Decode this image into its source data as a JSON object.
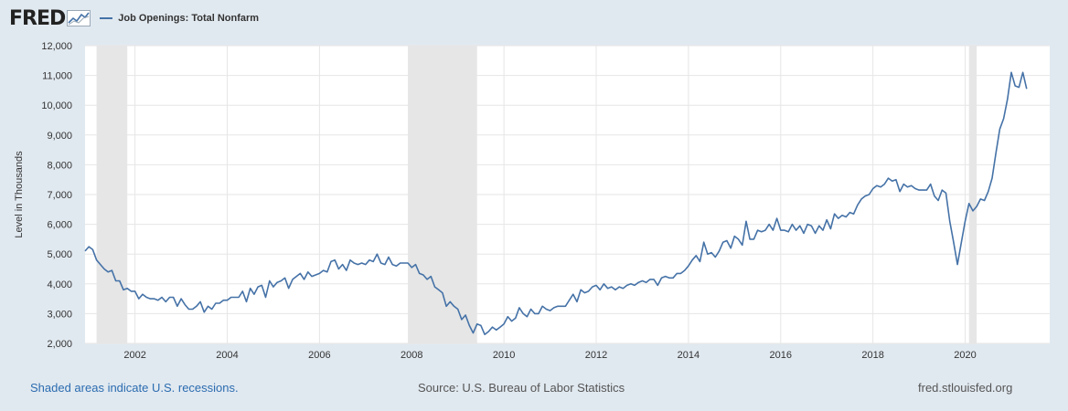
{
  "header": {
    "logo_text": "FRED",
    "legend_label": "Job Openings: Total Nonfarm"
  },
  "footer": {
    "recession_note": "Shaded areas indicate U.S. recessions.",
    "source": "Source: U.S. Bureau of Labor Statistics",
    "url": "fred.stlouisfed.org"
  },
  "colors": {
    "line": "#4572a7",
    "background": "#e1e9f0",
    "plot_background": "#ffffff",
    "recession_shading": "#e6e6e6",
    "link": "#2b6cb0"
  },
  "chart_data": {
    "type": "line",
    "title": "",
    "xlabel": "",
    "ylabel": "Level in Thousands",
    "xlim": [
      2000.917,
      2021.833
    ],
    "ylim": [
      2000,
      12000
    ],
    "y_ticks": [
      2000,
      3000,
      4000,
      5000,
      6000,
      7000,
      8000,
      9000,
      10000,
      11000,
      12000
    ],
    "y_tick_labels": [
      "2,000",
      "3,000",
      "4,000",
      "5,000",
      "6,000",
      "7,000",
      "8,000",
      "9,000",
      "10,000",
      "11,000",
      "12,000"
    ],
    "x_ticks": [
      2002,
      2004,
      2006,
      2008,
      2010,
      2012,
      2014,
      2016,
      2018,
      2020
    ],
    "x_tick_labels": [
      "2002",
      "2004",
      "2006",
      "2008",
      "2010",
      "2012",
      "2014",
      "2016",
      "2018",
      "2020"
    ],
    "grid": true,
    "legend_position": "top-left",
    "recessions": [
      [
        2001.167,
        2001.833
      ],
      [
        2007.917,
        2009.417
      ],
      [
        2020.083,
        2020.25
      ]
    ],
    "series": [
      {
        "name": "Job Openings: Total Nonfarm",
        "points": [
          [
            2000.917,
            5100
          ],
          [
            2001.0,
            5250
          ],
          [
            2001.083,
            5150
          ],
          [
            2001.167,
            4800
          ],
          [
            2001.25,
            4650
          ],
          [
            2001.333,
            4500
          ],
          [
            2001.417,
            4400
          ],
          [
            2001.5,
            4450
          ],
          [
            2001.583,
            4100
          ],
          [
            2001.667,
            4100
          ],
          [
            2001.75,
            3800
          ],
          [
            2001.833,
            3850
          ],
          [
            2001.917,
            3750
          ],
          [
            2002.0,
            3750
          ],
          [
            2002.083,
            3500
          ],
          [
            2002.167,
            3650
          ],
          [
            2002.25,
            3550
          ],
          [
            2002.333,
            3500
          ],
          [
            2002.417,
            3500
          ],
          [
            2002.5,
            3450
          ],
          [
            2002.583,
            3550
          ],
          [
            2002.667,
            3400
          ],
          [
            2002.75,
            3550
          ],
          [
            2002.833,
            3550
          ],
          [
            2002.917,
            3250
          ],
          [
            2003.0,
            3500
          ],
          [
            2003.083,
            3300
          ],
          [
            2003.167,
            3150
          ],
          [
            2003.25,
            3150
          ],
          [
            2003.333,
            3250
          ],
          [
            2003.417,
            3400
          ],
          [
            2003.5,
            3050
          ],
          [
            2003.583,
            3250
          ],
          [
            2003.667,
            3150
          ],
          [
            2003.75,
            3350
          ],
          [
            2003.833,
            3350
          ],
          [
            2003.917,
            3450
          ],
          [
            2004.0,
            3450
          ],
          [
            2004.083,
            3550
          ],
          [
            2004.167,
            3550
          ],
          [
            2004.25,
            3550
          ],
          [
            2004.333,
            3750
          ],
          [
            2004.417,
            3400
          ],
          [
            2004.5,
            3850
          ],
          [
            2004.583,
            3650
          ],
          [
            2004.667,
            3900
          ],
          [
            2004.75,
            3950
          ],
          [
            2004.833,
            3550
          ],
          [
            2004.917,
            4100
          ],
          [
            2005.0,
            3900
          ],
          [
            2005.083,
            4050
          ],
          [
            2005.167,
            4100
          ],
          [
            2005.25,
            4200
          ],
          [
            2005.333,
            3850
          ],
          [
            2005.417,
            4150
          ],
          [
            2005.5,
            4250
          ],
          [
            2005.583,
            4350
          ],
          [
            2005.667,
            4150
          ],
          [
            2005.75,
            4400
          ],
          [
            2005.833,
            4250
          ],
          [
            2005.917,
            4300
          ],
          [
            2006.0,
            4350
          ],
          [
            2006.083,
            4450
          ],
          [
            2006.167,
            4400
          ],
          [
            2006.25,
            4750
          ],
          [
            2006.333,
            4800
          ],
          [
            2006.417,
            4500
          ],
          [
            2006.5,
            4650
          ],
          [
            2006.583,
            4450
          ],
          [
            2006.667,
            4800
          ],
          [
            2006.75,
            4700
          ],
          [
            2006.833,
            4650
          ],
          [
            2006.917,
            4700
          ],
          [
            2007.0,
            4650
          ],
          [
            2007.083,
            4800
          ],
          [
            2007.167,
            4750
          ],
          [
            2007.25,
            5000
          ],
          [
            2007.333,
            4700
          ],
          [
            2007.417,
            4650
          ],
          [
            2007.5,
            4900
          ],
          [
            2007.583,
            4650
          ],
          [
            2007.667,
            4600
          ],
          [
            2007.75,
            4700
          ],
          [
            2007.833,
            4700
          ],
          [
            2007.917,
            4700
          ],
          [
            2008.0,
            4550
          ],
          [
            2008.083,
            4650
          ],
          [
            2008.167,
            4350
          ],
          [
            2008.25,
            4300
          ],
          [
            2008.333,
            4150
          ],
          [
            2008.417,
            4250
          ],
          [
            2008.5,
            3900
          ],
          [
            2008.583,
            3800
          ],
          [
            2008.667,
            3700
          ],
          [
            2008.75,
            3250
          ],
          [
            2008.833,
            3400
          ],
          [
            2008.917,
            3250
          ],
          [
            2009.0,
            3150
          ],
          [
            2009.083,
            2800
          ],
          [
            2009.167,
            2950
          ],
          [
            2009.25,
            2600
          ],
          [
            2009.333,
            2350
          ],
          [
            2009.417,
            2650
          ],
          [
            2009.5,
            2600
          ],
          [
            2009.583,
            2300
          ],
          [
            2009.667,
            2400
          ],
          [
            2009.75,
            2550
          ],
          [
            2009.833,
            2450
          ],
          [
            2009.917,
            2550
          ],
          [
            2010.0,
            2650
          ],
          [
            2010.083,
            2900
          ],
          [
            2010.167,
            2750
          ],
          [
            2010.25,
            2850
          ],
          [
            2010.333,
            3200
          ],
          [
            2010.417,
            3000
          ],
          [
            2010.5,
            2900
          ],
          [
            2010.583,
            3150
          ],
          [
            2010.667,
            3000
          ],
          [
            2010.75,
            3000
          ],
          [
            2010.833,
            3250
          ],
          [
            2010.917,
            3150
          ],
          [
            2011.0,
            3100
          ],
          [
            2011.083,
            3200
          ],
          [
            2011.167,
            3250
          ],
          [
            2011.25,
            3250
          ],
          [
            2011.333,
            3250
          ],
          [
            2011.417,
            3450
          ],
          [
            2011.5,
            3650
          ],
          [
            2011.583,
            3400
          ],
          [
            2011.667,
            3800
          ],
          [
            2011.75,
            3700
          ],
          [
            2011.833,
            3750
          ],
          [
            2011.917,
            3900
          ],
          [
            2012.0,
            3950
          ],
          [
            2012.083,
            3800
          ],
          [
            2012.167,
            4000
          ],
          [
            2012.25,
            3850
          ],
          [
            2012.333,
            3900
          ],
          [
            2012.417,
            3800
          ],
          [
            2012.5,
            3900
          ],
          [
            2012.583,
            3850
          ],
          [
            2012.667,
            3950
          ],
          [
            2012.75,
            4000
          ],
          [
            2012.833,
            3950
          ],
          [
            2012.917,
            4050
          ],
          [
            2013.0,
            4100
          ],
          [
            2013.083,
            4050
          ],
          [
            2013.167,
            4150
          ],
          [
            2013.25,
            4150
          ],
          [
            2013.333,
            3950
          ],
          [
            2013.417,
            4200
          ],
          [
            2013.5,
            4250
          ],
          [
            2013.583,
            4200
          ],
          [
            2013.667,
            4200
          ],
          [
            2013.75,
            4350
          ],
          [
            2013.833,
            4350
          ],
          [
            2013.917,
            4450
          ],
          [
            2014.0,
            4600
          ],
          [
            2014.083,
            4800
          ],
          [
            2014.167,
            4950
          ],
          [
            2014.25,
            4750
          ],
          [
            2014.333,
            5400
          ],
          [
            2014.417,
            5000
          ],
          [
            2014.5,
            5050
          ],
          [
            2014.583,
            4900
          ],
          [
            2014.667,
            5100
          ],
          [
            2014.75,
            5400
          ],
          [
            2014.833,
            5450
          ],
          [
            2014.917,
            5200
          ],
          [
            2015.0,
            5600
          ],
          [
            2015.083,
            5500
          ],
          [
            2015.167,
            5300
          ],
          [
            2015.25,
            6100
          ],
          [
            2015.333,
            5500
          ],
          [
            2015.417,
            5500
          ],
          [
            2015.5,
            5800
          ],
          [
            2015.583,
            5750
          ],
          [
            2015.667,
            5800
          ],
          [
            2015.75,
            6000
          ],
          [
            2015.833,
            5800
          ],
          [
            2015.917,
            6200
          ],
          [
            2016.0,
            5800
          ],
          [
            2016.083,
            5800
          ],
          [
            2016.167,
            5750
          ],
          [
            2016.25,
            6000
          ],
          [
            2016.333,
            5800
          ],
          [
            2016.417,
            5950
          ],
          [
            2016.5,
            5700
          ],
          [
            2016.583,
            6000
          ],
          [
            2016.667,
            5950
          ],
          [
            2016.75,
            5700
          ],
          [
            2016.833,
            5950
          ],
          [
            2016.917,
            5800
          ],
          [
            2017.0,
            6150
          ],
          [
            2017.083,
            5850
          ],
          [
            2017.167,
            6350
          ],
          [
            2017.25,
            6200
          ],
          [
            2017.333,
            6300
          ],
          [
            2017.417,
            6250
          ],
          [
            2017.5,
            6400
          ],
          [
            2017.583,
            6350
          ],
          [
            2017.667,
            6650
          ],
          [
            2017.75,
            6850
          ],
          [
            2017.833,
            6950
          ],
          [
            2017.917,
            7000
          ],
          [
            2018.0,
            7200
          ],
          [
            2018.083,
            7300
          ],
          [
            2018.167,
            7250
          ],
          [
            2018.25,
            7350
          ],
          [
            2018.333,
            7550
          ],
          [
            2018.417,
            7450
          ],
          [
            2018.5,
            7500
          ],
          [
            2018.583,
            7100
          ],
          [
            2018.667,
            7350
          ],
          [
            2018.75,
            7250
          ],
          [
            2018.833,
            7300
          ],
          [
            2018.917,
            7200
          ],
          [
            2019.0,
            7150
          ],
          [
            2019.083,
            7150
          ],
          [
            2019.167,
            7150
          ],
          [
            2019.25,
            7350
          ],
          [
            2019.333,
            6950
          ],
          [
            2019.417,
            6800
          ],
          [
            2019.5,
            7150
          ],
          [
            2019.583,
            7050
          ],
          [
            2019.667,
            6100
          ],
          [
            2019.75,
            5400
          ],
          [
            2019.833,
            4650
          ],
          [
            2019.917,
            5400
          ],
          [
            2020.0,
            6100
          ],
          [
            2020.083,
            6700
          ],
          [
            2020.167,
            6450
          ],
          [
            2020.25,
            6600
          ],
          [
            2020.333,
            6850
          ],
          [
            2020.417,
            6800
          ],
          [
            2020.5,
            7100
          ],
          [
            2020.583,
            7550
          ],
          [
            2020.667,
            8400
          ],
          [
            2020.75,
            9200
          ],
          [
            2020.833,
            9550
          ],
          [
            2020.917,
            10200
          ],
          [
            2021.0,
            11100
          ],
          [
            2021.083,
            10650
          ],
          [
            2021.167,
            10600
          ],
          [
            2021.25,
            11100
          ],
          [
            2021.333,
            10550
          ]
        ]
      }
    ]
  }
}
